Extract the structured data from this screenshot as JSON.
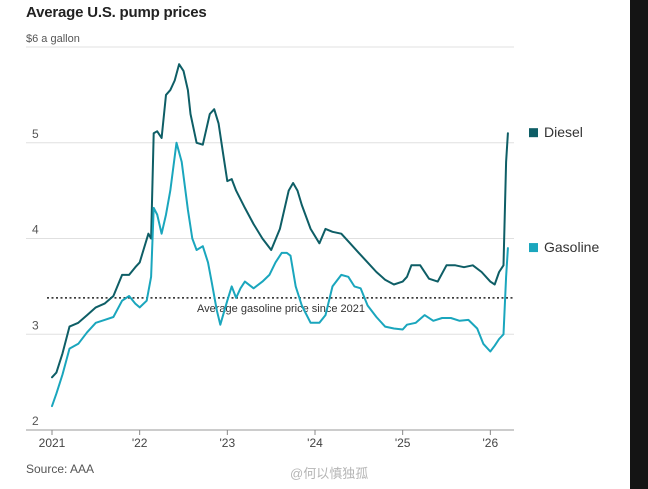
{
  "chart_data": {
    "type": "line",
    "title": "Average U.S. pump prices",
    "ylabel": "$6 a gallon",
    "ylim": [
      2,
      6
    ],
    "yticks": [
      2,
      3,
      4,
      5
    ],
    "ytick_labels": [
      "2",
      "3",
      "4",
      "5"
    ],
    "xlim": [
      2021.0,
      2026.27
    ],
    "xticks": [
      2021,
      2022,
      2023,
      2024,
      2025,
      2026
    ],
    "xtick_labels": [
      "2021",
      "'22",
      "'23",
      "'24",
      "'25",
      "'26"
    ],
    "reference_line": {
      "value": 3.38,
      "label": "Average gasoline price since 2021"
    },
    "series": [
      {
        "name": "Diesel",
        "color": "#0e5e66",
        "points": [
          [
            2021.0,
            2.55
          ],
          [
            2021.05,
            2.6
          ],
          [
            2021.12,
            2.8
          ],
          [
            2021.2,
            3.08
          ],
          [
            2021.3,
            3.12
          ],
          [
            2021.4,
            3.2
          ],
          [
            2021.5,
            3.28
          ],
          [
            2021.6,
            3.32
          ],
          [
            2021.7,
            3.4
          ],
          [
            2021.8,
            3.62
          ],
          [
            2021.88,
            3.62
          ],
          [
            2021.95,
            3.7
          ],
          [
            2022.0,
            3.75
          ],
          [
            2022.1,
            4.05
          ],
          [
            2022.13,
            4.0
          ],
          [
            2022.16,
            5.1
          ],
          [
            2022.2,
            5.12
          ],
          [
            2022.25,
            5.05
          ],
          [
            2022.3,
            5.5
          ],
          [
            2022.35,
            5.55
          ],
          [
            2022.4,
            5.65
          ],
          [
            2022.45,
            5.82
          ],
          [
            2022.5,
            5.75
          ],
          [
            2022.55,
            5.55
          ],
          [
            2022.58,
            5.3
          ],
          [
            2022.65,
            5.0
          ],
          [
            2022.72,
            4.98
          ],
          [
            2022.8,
            5.3
          ],
          [
            2022.85,
            5.35
          ],
          [
            2022.9,
            5.2
          ],
          [
            2022.95,
            4.9
          ],
          [
            2023.0,
            4.6
          ],
          [
            2023.05,
            4.62
          ],
          [
            2023.1,
            4.5
          ],
          [
            2023.2,
            4.32
          ],
          [
            2023.3,
            4.15
          ],
          [
            2023.4,
            4.0
          ],
          [
            2023.5,
            3.88
          ],
          [
            2023.6,
            4.1
          ],
          [
            2023.7,
            4.5
          ],
          [
            2023.75,
            4.58
          ],
          [
            2023.8,
            4.5
          ],
          [
            2023.85,
            4.35
          ],
          [
            2023.95,
            4.1
          ],
          [
            2024.05,
            3.95
          ],
          [
            2024.12,
            4.1
          ],
          [
            2024.2,
            4.07
          ],
          [
            2024.3,
            4.05
          ],
          [
            2024.4,
            3.95
          ],
          [
            2024.5,
            3.85
          ],
          [
            2024.6,
            3.75
          ],
          [
            2024.7,
            3.65
          ],
          [
            2024.8,
            3.57
          ],
          [
            2024.9,
            3.52
          ],
          [
            2025.0,
            3.55
          ],
          [
            2025.05,
            3.6
          ],
          [
            2025.1,
            3.72
          ],
          [
            2025.2,
            3.72
          ],
          [
            2025.3,
            3.58
          ],
          [
            2025.4,
            3.55
          ],
          [
            2025.5,
            3.72
          ],
          [
            2025.6,
            3.72
          ],
          [
            2025.7,
            3.7
          ],
          [
            2025.8,
            3.72
          ],
          [
            2025.9,
            3.65
          ],
          [
            2026.0,
            3.55
          ],
          [
            2026.05,
            3.52
          ],
          [
            2026.1,
            3.65
          ],
          [
            2026.15,
            3.72
          ],
          [
            2026.18,
            4.8
          ],
          [
            2026.2,
            5.1
          ]
        ]
      },
      {
        "name": "Gasoline",
        "color": "#1aa6bd",
        "points": [
          [
            2021.0,
            2.25
          ],
          [
            2021.05,
            2.38
          ],
          [
            2021.12,
            2.58
          ],
          [
            2021.2,
            2.85
          ],
          [
            2021.3,
            2.9
          ],
          [
            2021.4,
            3.02
          ],
          [
            2021.5,
            3.12
          ],
          [
            2021.6,
            3.15
          ],
          [
            2021.7,
            3.18
          ],
          [
            2021.8,
            3.35
          ],
          [
            2021.88,
            3.4
          ],
          [
            2021.95,
            3.32
          ],
          [
            2022.0,
            3.28
          ],
          [
            2022.08,
            3.35
          ],
          [
            2022.13,
            3.6
          ],
          [
            2022.16,
            4.32
          ],
          [
            2022.2,
            4.25
          ],
          [
            2022.25,
            4.05
          ],
          [
            2022.3,
            4.25
          ],
          [
            2022.35,
            4.5
          ],
          [
            2022.42,
            5.0
          ],
          [
            2022.48,
            4.8
          ],
          [
            2022.55,
            4.3
          ],
          [
            2022.6,
            4.0
          ],
          [
            2022.65,
            3.88
          ],
          [
            2022.72,
            3.92
          ],
          [
            2022.78,
            3.75
          ],
          [
            2022.82,
            3.55
          ],
          [
            2022.88,
            3.25
          ],
          [
            2022.92,
            3.1
          ],
          [
            2023.0,
            3.35
          ],
          [
            2023.05,
            3.5
          ],
          [
            2023.1,
            3.38
          ],
          [
            2023.15,
            3.48
          ],
          [
            2023.2,
            3.55
          ],
          [
            2023.3,
            3.48
          ],
          [
            2023.4,
            3.55
          ],
          [
            2023.48,
            3.62
          ],
          [
            2023.55,
            3.75
          ],
          [
            2023.62,
            3.85
          ],
          [
            2023.68,
            3.85
          ],
          [
            2023.72,
            3.82
          ],
          [
            2023.78,
            3.5
          ],
          [
            2023.85,
            3.3
          ],
          [
            2023.95,
            3.12
          ],
          [
            2024.05,
            3.12
          ],
          [
            2024.12,
            3.2
          ],
          [
            2024.2,
            3.5
          ],
          [
            2024.3,
            3.62
          ],
          [
            2024.38,
            3.6
          ],
          [
            2024.45,
            3.5
          ],
          [
            2024.52,
            3.48
          ],
          [
            2024.6,
            3.3
          ],
          [
            2024.7,
            3.18
          ],
          [
            2024.8,
            3.08
          ],
          [
            2024.9,
            3.06
          ],
          [
            2025.0,
            3.05
          ],
          [
            2025.05,
            3.1
          ],
          [
            2025.15,
            3.12
          ],
          [
            2025.25,
            3.2
          ],
          [
            2025.35,
            3.14
          ],
          [
            2025.45,
            3.17
          ],
          [
            2025.55,
            3.17
          ],
          [
            2025.65,
            3.14
          ],
          [
            2025.75,
            3.15
          ],
          [
            2025.85,
            3.06
          ],
          [
            2025.92,
            2.9
          ],
          [
            2026.0,
            2.82
          ],
          [
            2026.05,
            2.88
          ],
          [
            2026.1,
            2.95
          ],
          [
            2026.15,
            3.0
          ],
          [
            2026.18,
            3.6
          ],
          [
            2026.2,
            3.9
          ]
        ]
      }
    ]
  },
  "source": "Source: AAA",
  "watermark": "@何以慎独孤"
}
